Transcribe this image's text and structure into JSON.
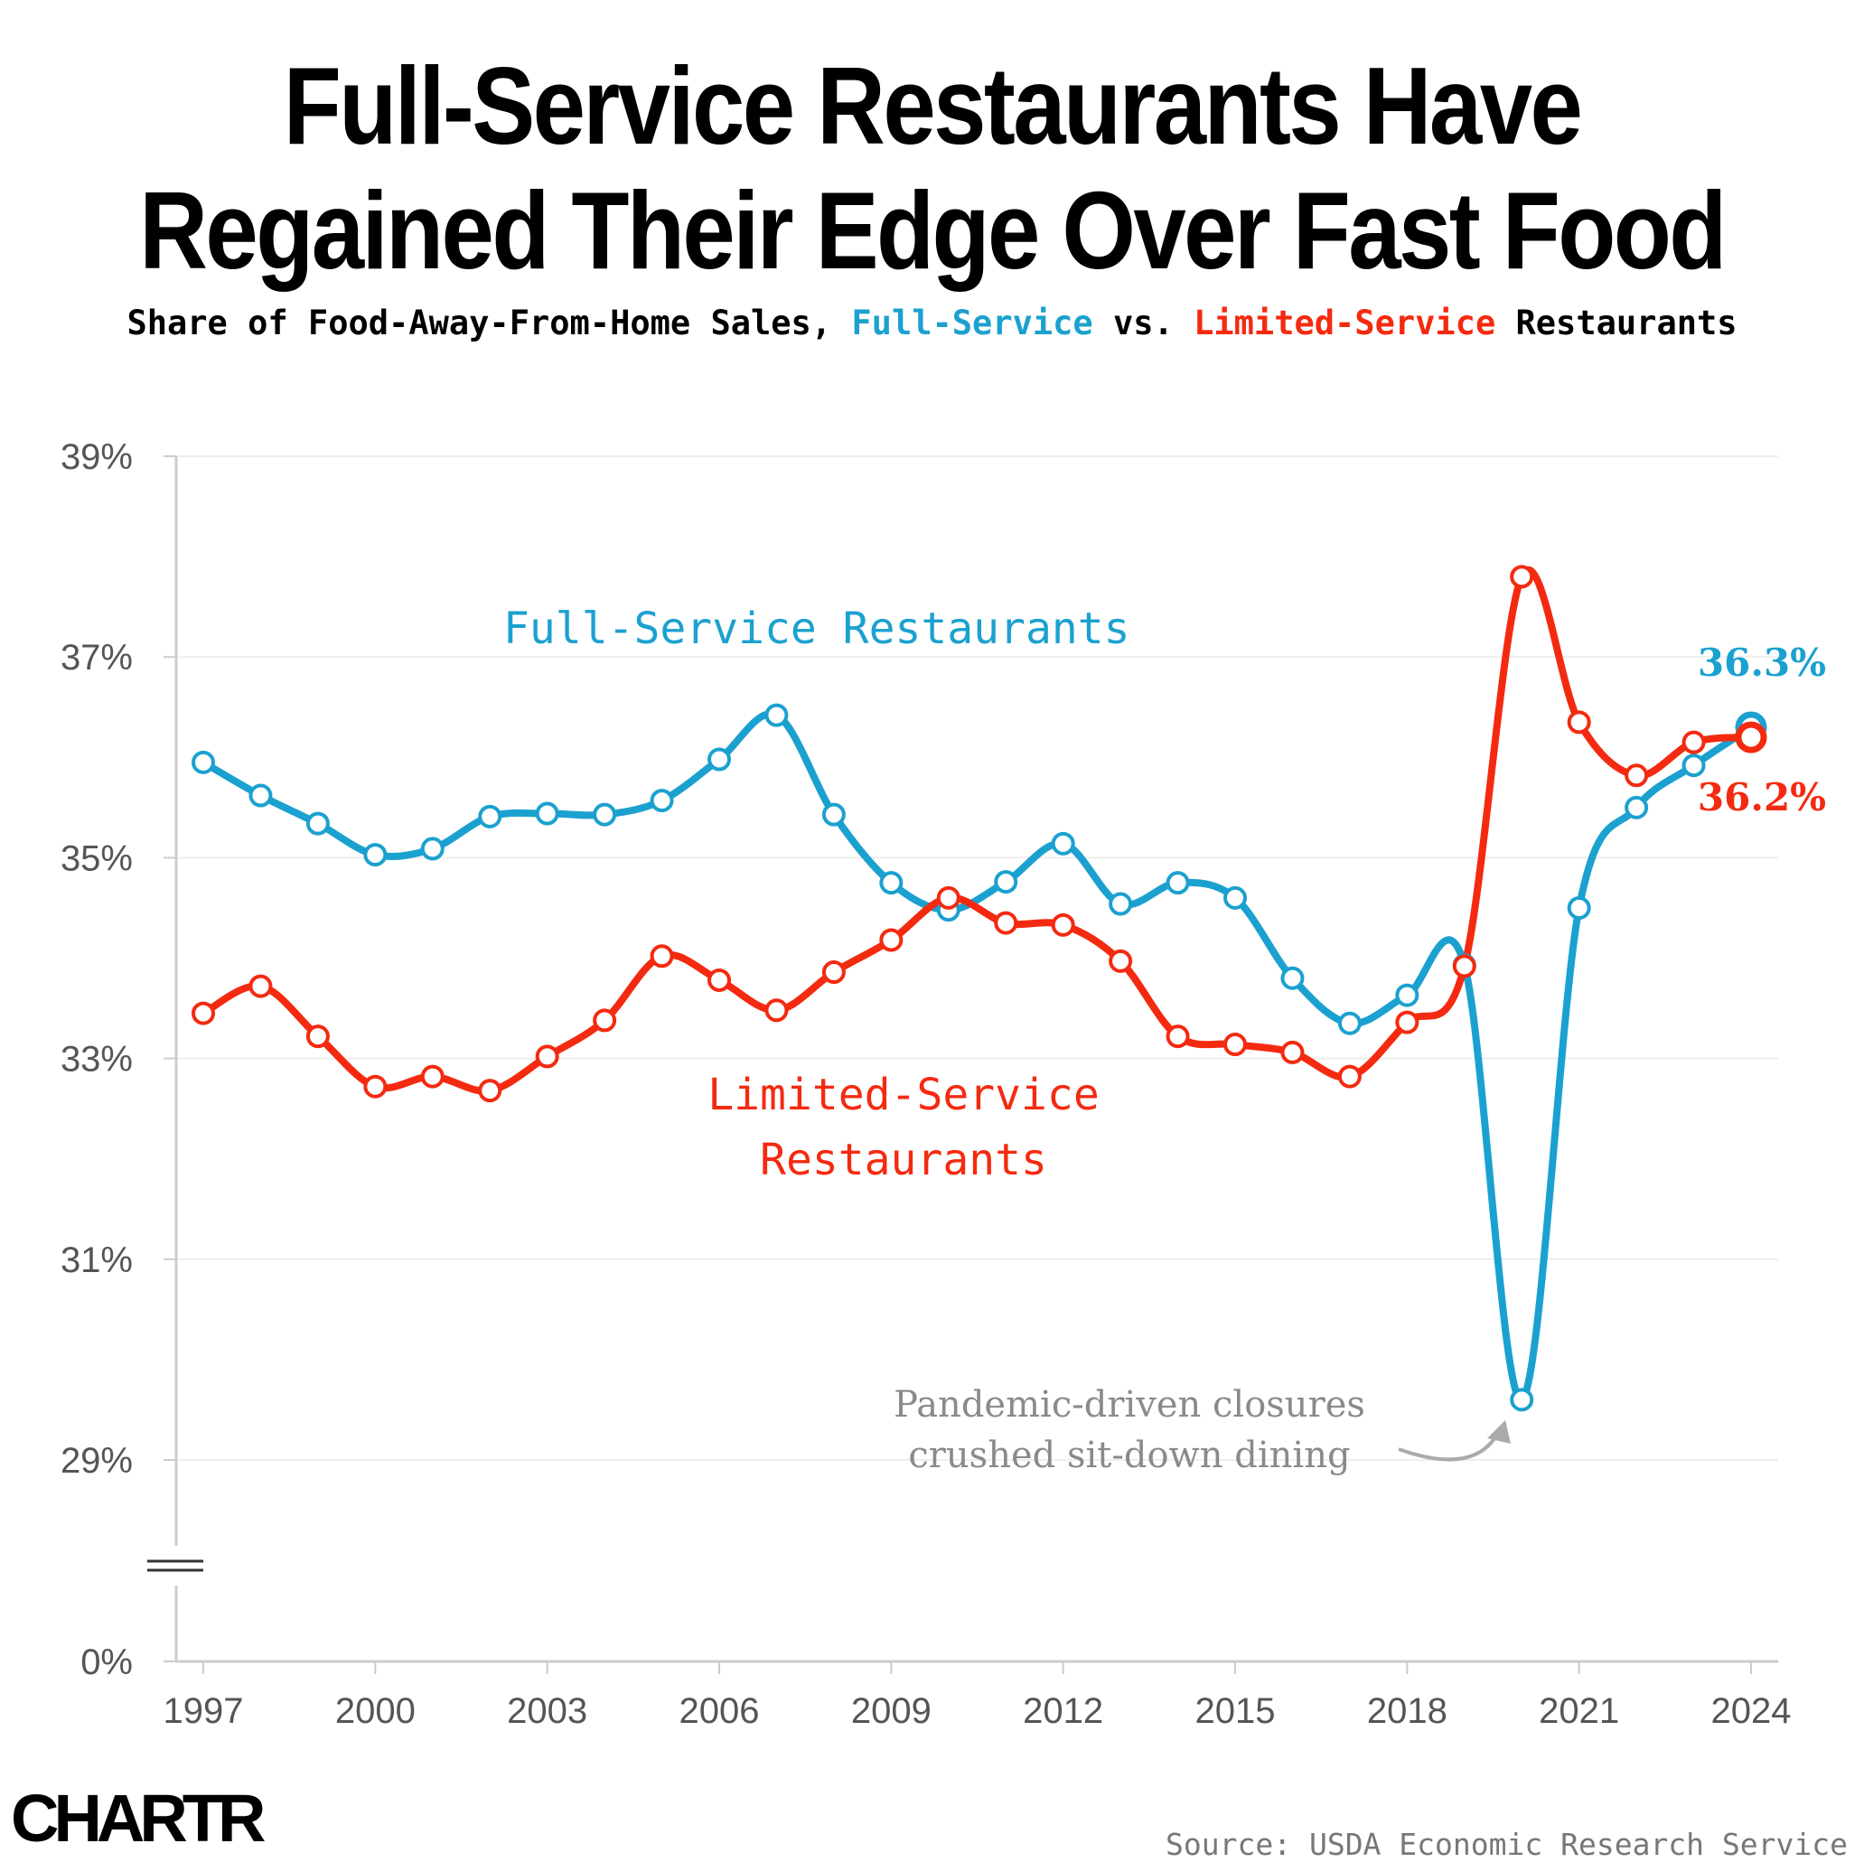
{
  "title_line1": "Full-Service Restaurants Have",
  "title_line2": "Regained Their Edge Over Fast Food",
  "subtitle": {
    "part1": "Share of Food-Away-From-Home Sales, ",
    "full_service": "Full-Service",
    "part2": " vs. ",
    "limited_service": "Limited-Service",
    "part3": " Restaurants"
  },
  "logo_text": "CHARTR",
  "source": "Source: USDA Economic Research Service",
  "chart_data": {
    "type": "line",
    "x": [
      1997,
      1998,
      1999,
      2000,
      2001,
      2002,
      2003,
      2004,
      2005,
      2006,
      2007,
      2008,
      2009,
      2010,
      2011,
      2012,
      2013,
      2014,
      2015,
      2016,
      2017,
      2018,
      2019,
      2020,
      2021,
      2022,
      2023,
      2024
    ],
    "series": [
      {
        "name": "Full-Service Restaurants",
        "color": "#1ba1cf",
        "values": [
          35.95,
          35.62,
          35.34,
          35.03,
          35.09,
          35.41,
          35.44,
          35.43,
          35.57,
          35.98,
          36.42,
          35.43,
          34.75,
          34.48,
          34.76,
          35.14,
          34.54,
          34.75,
          34.6,
          33.8,
          33.35,
          33.63,
          33.93,
          29.6,
          34.5,
          35.5,
          35.92,
          36.3
        ]
      },
      {
        "name": "Limited-Service Restaurants",
        "color": "#f42a10",
        "values": [
          33.45,
          33.72,
          33.22,
          32.72,
          32.82,
          32.68,
          33.02,
          33.38,
          34.02,
          33.78,
          33.48,
          33.86,
          34.18,
          34.6,
          34.35,
          34.33,
          33.97,
          33.22,
          33.14,
          33.06,
          32.82,
          33.36,
          33.92,
          37.8,
          36.35,
          35.82,
          36.15,
          36.2
        ]
      }
    ],
    "y_ticks": [
      "39%",
      "37%",
      "35%",
      "33%",
      "31%",
      "29%",
      "0%"
    ],
    "x_ticks": [
      "1997",
      "2000",
      "2003",
      "2006",
      "2009",
      "2012",
      "2015",
      "2018",
      "2021",
      "2024"
    ],
    "ylim": [
      29,
      39
    ],
    "y_break": true,
    "end_labels": {
      "full_service": "36.3%",
      "limited_service": "36.2%"
    },
    "series_labels": {
      "full_service": "Full-Service Restaurants",
      "limited_service_line1": "Limited-Service",
      "limited_service_line2": "Restaurants"
    },
    "annotation": {
      "line1": "Pandemic-driven closures",
      "line2": "crushed sit-down dining"
    }
  }
}
